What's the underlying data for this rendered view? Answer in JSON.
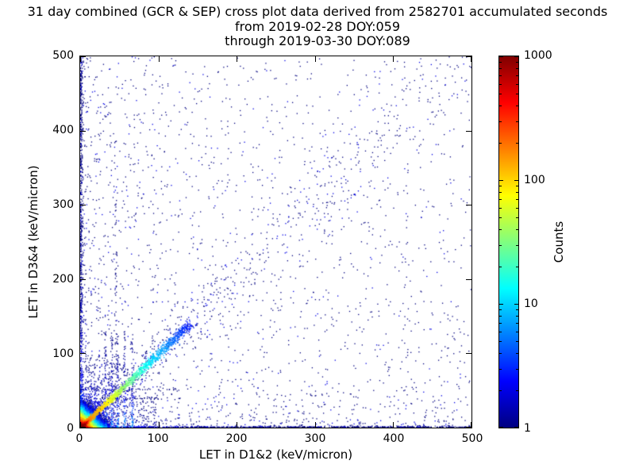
{
  "chart_data": {
    "type": "scatter",
    "title": "31 day combined (GCR & SEP) cross plot data derived from 2582701 accumulated seconds",
    "subtitle_from": "from 2019-02-28 DOY:059",
    "subtitle_through": "through 2019-03-30 DOY:089",
    "xlabel": "LET in D1&2 (keV/micron)",
    "ylabel": "LET in D3&4 (keV/micron)",
    "xlim": [
      0,
      500
    ],
    "ylim": [
      0,
      500
    ],
    "xticks": [
      0,
      100,
      200,
      300,
      400,
      500
    ],
    "yticks": [
      0,
      100,
      200,
      300,
      400,
      500
    ],
    "grid": false,
    "accumulated_seconds": 2582701,
    "colorbar": {
      "label": "Counts",
      "scale": "log",
      "min": 1,
      "max": 1000,
      "ticks": [
        1,
        10,
        100,
        1000
      ],
      "colormap": "jet"
    },
    "description": "2D density cross plot: very hot (red/orange, ~1000 counts) core at the origin, a bright green-to-cyan-to-blue streak along y=x fading by ~130 keV/micron, a diffuse diagonal band of single counts to 500, dense single-count speckle near both axes, vertical striations near x=32-66, and sparse dark-blue single counts across the full field.",
    "distribution": {
      "seed": 20190228,
      "components": {
        "uniform_background": {
          "n": 650,
          "count": 1
        },
        "left_band": {
          "n": 950,
          "x_pow": 3.5,
          "y_pow": 1.1
        },
        "bottom_band": {
          "n": 950,
          "x_pow": 1.1,
          "y_pow": 3.5
        },
        "left_edge_strip": {
          "n": 420,
          "width": 4,
          "count0": 5,
          "decay": 55
        },
        "bottom_edge_strip": {
          "n": 420,
          "width": 4,
          "count0": 5,
          "decay": 55
        },
        "origin_fan": {
          "n": 1400,
          "r_max": 100,
          "r_pow": 2.2,
          "count0": 8,
          "decay": 20
        },
        "diffuse_diagonal": {
          "n": 700,
          "t_pow": 2.0,
          "sigma0": 4,
          "sigma_slope": 0.06
        },
        "tight_diagonal": {
          "n": 1600,
          "t_max": 140,
          "t_pow": 1.4,
          "sigma0": 1.2,
          "sigma_slope": 0.015,
          "count0": 250,
          "decay": 28
        },
        "core": {
          "extent": 38,
          "step": 0.8,
          "amp": 1400,
          "decay": 5.5,
          "diag_boost": 5,
          "diag_width": 2
        },
        "vertical_striations": {
          "x": [
            32,
            40,
            47,
            56,
            66
          ],
          "n_each": 60,
          "y_max": 130,
          "count0": 6,
          "decay": 30
        },
        "tall_column": {
          "x": 45,
          "n": 60,
          "y_max": 350
        },
        "horizontal_striations": {
          "y": [
            40,
            52
          ],
          "n_each": 50,
          "x_max": 130
        }
      }
    }
  }
}
